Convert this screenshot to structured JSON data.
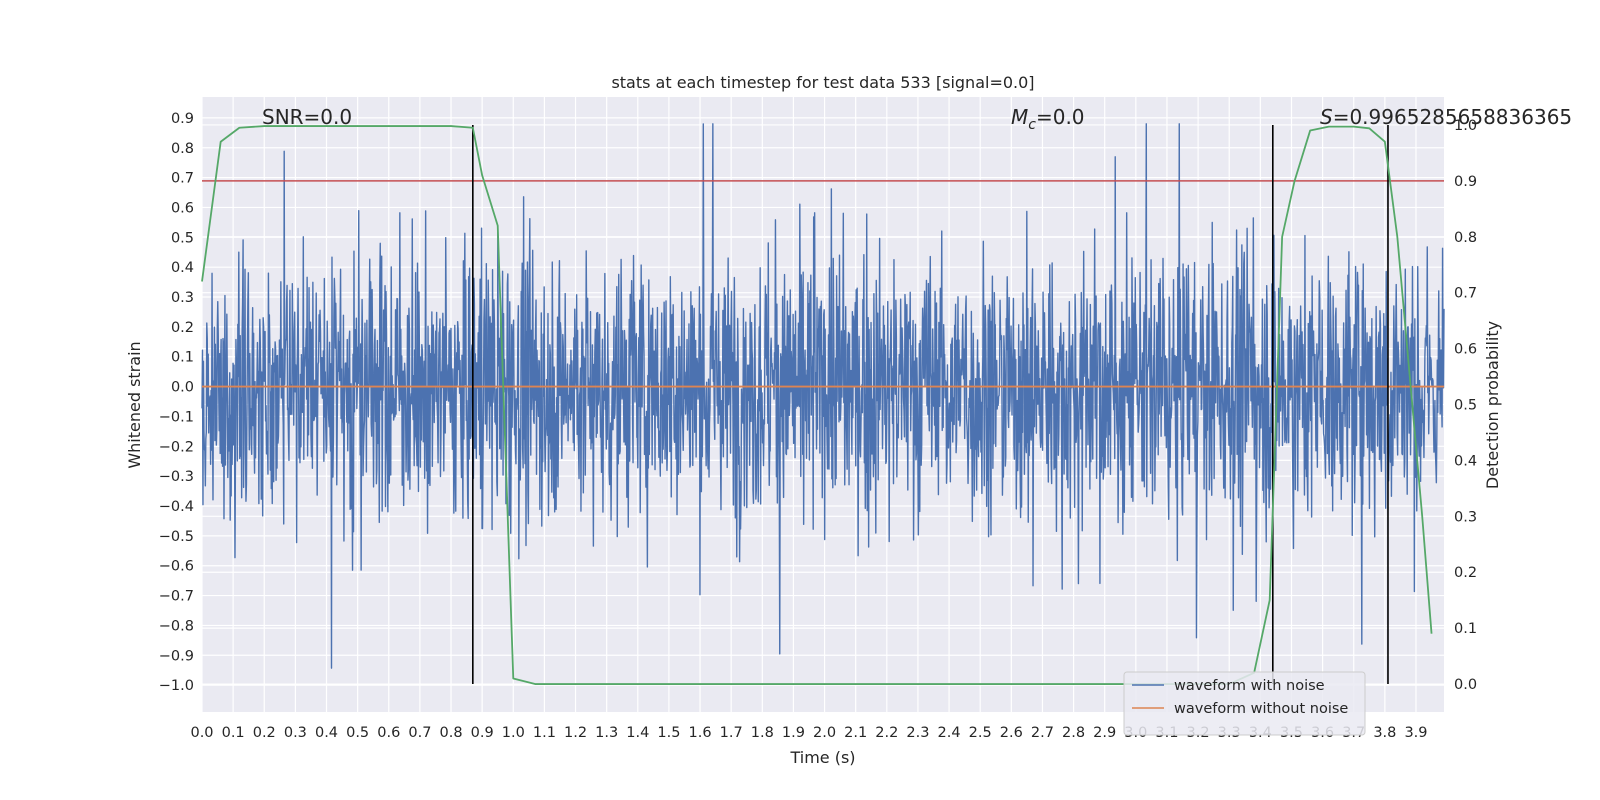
{
  "chart_data": {
    "type": "line",
    "title": "stats at each timestep for test data 533 [signal=0.0]",
    "xlabel": "Time (s)",
    "ylabel": "Whitened strain",
    "y2label": "Detection probability",
    "xlim": [
      0.0,
      3.99
    ],
    "ylim": [
      -1.09,
      0.97
    ],
    "y2lim": [
      -0.05,
      1.05
    ],
    "x_ticks": [
      "0.0",
      "0.1",
      "0.2",
      "0.3",
      "0.4",
      "0.5",
      "0.6",
      "0.7",
      "0.8",
      "0.9",
      "1.0",
      "1.1",
      "1.2",
      "1.3",
      "1.4",
      "1.5",
      "1.6",
      "1.7",
      "1.8",
      "1.9",
      "2.0",
      "2.1",
      "2.2",
      "2.3",
      "2.4",
      "2.5",
      "2.6",
      "2.7",
      "2.8",
      "2.9",
      "3.0",
      "3.1",
      "3.2",
      "3.3",
      "3.4",
      "3.5",
      "3.6",
      "3.7",
      "3.8",
      "3.9"
    ],
    "y_ticks": [
      "0.9",
      "0.8",
      "0.7",
      "0.6",
      "0.5",
      "0.4",
      "0.3",
      "0.2",
      "0.1",
      "0.0",
      "−0.1",
      "−0.2",
      "−0.3",
      "−0.4",
      "−0.5",
      "−0.6",
      "−0.7",
      "−0.8",
      "−0.9",
      "−1.0"
    ],
    "y2_ticks": [
      "1.0",
      "0.9",
      "0.8",
      "0.7",
      "0.6",
      "0.5",
      "0.4",
      "0.3",
      "0.2",
      "0.1",
      "0.0"
    ],
    "annotations": {
      "snr": "SNR=0.0",
      "mc_symbol": "M",
      "mc_sub": "c",
      "mc_value": "=0.0",
      "s_symbol": "S",
      "s_value": "=0.9965285658836365"
    },
    "threshold": 0.9,
    "vlines": [
      0.87,
      3.44,
      3.81
    ],
    "series": [
      {
        "name": "waveform with noise",
        "color": "#4c72b0",
        "description": "dense noise between approx -1.0 and 0.88"
      },
      {
        "name": "waveform without noise",
        "color": "#dd8452",
        "values_constant": 0.0
      },
      {
        "name": "detection probability",
        "color": "#55a868",
        "axis": "right",
        "x": [
          0.0,
          0.06,
          0.12,
          0.2,
          0.4,
          0.6,
          0.8,
          0.87,
          0.9,
          0.95,
          1.0,
          1.07,
          1.2,
          1.5,
          2.0,
          2.5,
          3.0,
          3.3,
          3.38,
          3.43,
          3.47,
          3.51,
          3.56,
          3.62,
          3.7,
          3.75,
          3.8,
          3.84,
          3.88,
          3.92,
          3.95
        ],
        "values": [
          0.72,
          0.97,
          0.995,
          0.998,
          0.998,
          0.998,
          0.998,
          0.995,
          0.91,
          0.82,
          0.01,
          0.0,
          0.0,
          0.0,
          0.0,
          0.0,
          0.0,
          0.0,
          0.02,
          0.15,
          0.8,
          0.9,
          0.99,
          0.997,
          0.997,
          0.994,
          0.97,
          0.8,
          0.55,
          0.3,
          0.09
        ]
      },
      {
        "name": "threshold",
        "color": "#c44e52",
        "axis": "right",
        "values_constant": 0.9
      }
    ],
    "legend": {
      "placement": "lower-right",
      "entries": [
        {
          "label": "waveform with noise",
          "color": "#4c72b0"
        },
        {
          "label": "waveform without noise",
          "color": "#dd8452"
        }
      ]
    }
  }
}
